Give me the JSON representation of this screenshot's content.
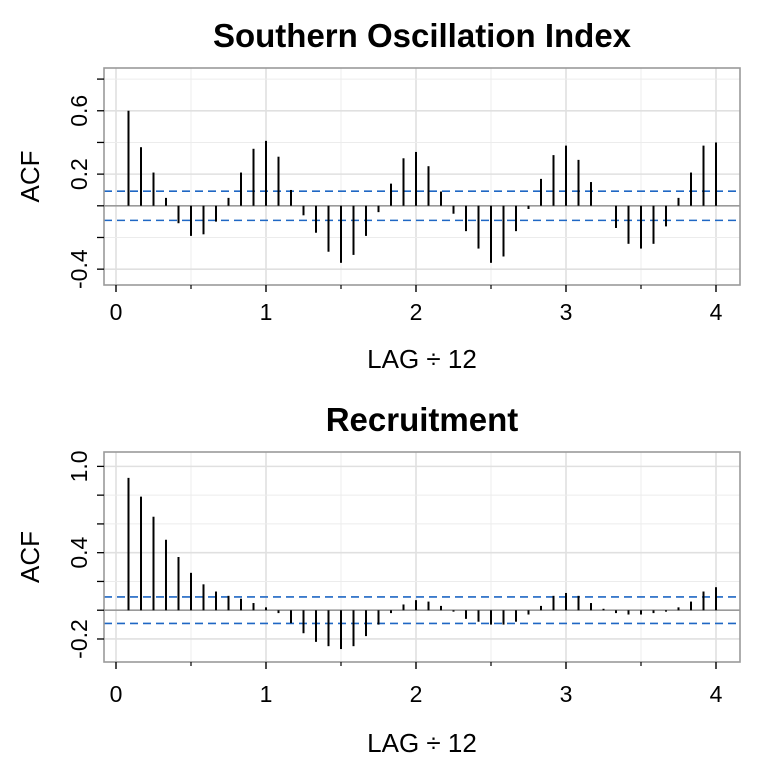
{
  "chart_data": [
    {
      "type": "bar",
      "title": "Southern Oscillation Index",
      "xlabel": "LAG ÷ 12",
      "ylabel": "ACF",
      "xlim": [
        -0.08,
        4.16
      ],
      "ylim": [
        -0.5,
        0.87
      ],
      "x_ticks": [
        "0",
        "1",
        "2",
        "3",
        "4"
      ],
      "y_ticks": [
        "-0.4",
        "0.2",
        "0.6"
      ],
      "y_tick_values": [
        -0.4,
        0.2,
        0.6
      ],
      "grid": true,
      "conf_band": [
        0.092,
        -0.092
      ],
      "x": [
        0.0833,
        0.1667,
        0.25,
        0.3333,
        0.4167,
        0.5,
        0.5833,
        0.6667,
        0.75,
        0.8333,
        0.9167,
        1.0,
        1.0833,
        1.1667,
        1.25,
        1.3333,
        1.4167,
        1.5,
        1.5833,
        1.6667,
        1.75,
        1.8333,
        1.9167,
        2.0,
        2.0833,
        2.1667,
        2.25,
        2.3333,
        2.4167,
        2.5,
        2.5833,
        2.6667,
        2.75,
        2.8333,
        2.9167,
        3.0,
        3.0833,
        3.1667,
        3.25,
        3.3333,
        3.4167,
        3.5,
        3.5833,
        3.6667,
        3.75,
        3.8333,
        3.9167,
        4.0
      ],
      "values": [
        0.6,
        0.37,
        0.21,
        0.05,
        -0.11,
        -0.19,
        -0.18,
        -0.1,
        0.05,
        0.21,
        0.36,
        0.41,
        0.31,
        0.1,
        -0.06,
        -0.17,
        -0.29,
        -0.36,
        -0.31,
        -0.19,
        -0.04,
        0.14,
        0.3,
        0.34,
        0.25,
        0.09,
        -0.05,
        -0.16,
        -0.27,
        -0.36,
        -0.32,
        -0.16,
        -0.02,
        0.17,
        0.32,
        0.38,
        0.29,
        0.15,
        0.0,
        -0.14,
        -0.24,
        -0.27,
        -0.24,
        -0.13,
        0.05,
        0.21,
        0.38,
        0.4
      ]
    },
    {
      "type": "bar",
      "title": "Recruitment",
      "xlabel": "LAG ÷ 12",
      "ylabel": "ACF",
      "xlim": [
        -0.08,
        4.16
      ],
      "ylim": [
        -0.36,
        1.1
      ],
      "x_ticks": [
        "0",
        "1",
        "2",
        "3",
        "4"
      ],
      "y_ticks": [
        "-0.2",
        "0.4",
        "1.0"
      ],
      "y_tick_values": [
        -0.2,
        0.4,
        1.0
      ],
      "grid": true,
      "conf_band": [
        0.092,
        -0.092
      ],
      "x": [
        0.0833,
        0.1667,
        0.25,
        0.3333,
        0.4167,
        0.5,
        0.5833,
        0.6667,
        0.75,
        0.8333,
        0.9167,
        1.0,
        1.0833,
        1.1667,
        1.25,
        1.3333,
        1.4167,
        1.5,
        1.5833,
        1.6667,
        1.75,
        1.8333,
        1.9167,
        2.0,
        2.0833,
        2.1667,
        2.25,
        2.3333,
        2.4167,
        2.5,
        2.5833,
        2.6667,
        2.75,
        2.8333,
        2.9167,
        3.0,
        3.0833,
        3.1667,
        3.25,
        3.3333,
        3.4167,
        3.5,
        3.5833,
        3.6667,
        3.75,
        3.8333,
        3.9167,
        4.0
      ],
      "values": [
        0.92,
        0.79,
        0.65,
        0.49,
        0.37,
        0.26,
        0.18,
        0.13,
        0.1,
        0.08,
        0.05,
        0.02,
        -0.02,
        -0.09,
        -0.16,
        -0.22,
        -0.25,
        -0.27,
        -0.25,
        -0.18,
        -0.1,
        -0.02,
        0.04,
        0.07,
        0.06,
        0.03,
        -0.01,
        -0.06,
        -0.08,
        -0.1,
        -0.1,
        -0.08,
        -0.03,
        0.03,
        0.1,
        0.12,
        0.1,
        0.05,
        0.01,
        -0.02,
        -0.03,
        -0.03,
        -0.02,
        -0.01,
        0.02,
        0.06,
        0.13,
        0.16
      ]
    }
  ]
}
